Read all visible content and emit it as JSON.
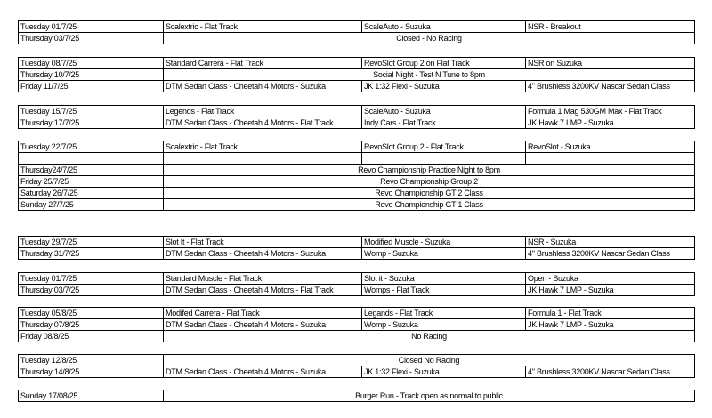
{
  "groups": [
    {
      "rows": [
        {
          "date": "Tuesday 01/7/25",
          "cells": [
            "Scalextric - Flat Track",
            "ScaleAuto - Suzuka",
            "NSR - Breakout"
          ]
        },
        {
          "date": "Thursday 03/7/25",
          "note": "Closed - No Racing"
        }
      ]
    },
    {
      "rows": [
        {
          "date": "Tuesday 08/7/25",
          "cells": [
            "Standard Carrera - Flat Track",
            "RevoSlot Group 2 on Flat Track",
            "NSR on Suzuka"
          ]
        },
        {
          "date": "Thursday 10/7/25",
          "note": "Social Night - Test N Tune to 8pm"
        },
        {
          "date": "Friday 11/7/25",
          "cells": [
            "DTM Sedan Class - Cheetah 4 Motors - Suzuka",
            "JK 1:32 Flexi - Suzuka",
            "4\" Brushless 3200KV Nascar Sedan Class"
          ]
        }
      ]
    },
    {
      "rows": [
        {
          "date": "Tuesday 15/7/25",
          "cells": [
            "Legends - Flat Track",
            "ScaleAuto - Suzuka",
            "Formula 1 Mag 530GM Max - Flat Track"
          ]
        },
        {
          "date": "Thursday 17/7/25",
          "cells": [
            "DTM Sedan Class - Cheetah 4 Motors - Flat Track",
            "Indy Cars - Flat Track",
            "JK Hawk 7 LMP - Suzuka"
          ]
        }
      ]
    },
    {
      "rows": [
        {
          "date": "Tuesday 22/7/25",
          "cells": [
            "Scalextric - Flat Track",
            "RevoSlot Group 2 - Flat Track",
            "RevoSlot - Suzuka"
          ]
        },
        {
          "date": "Thursday24/7/25",
          "note": "Revo Championship Practice Night to 8pm"
        },
        {
          "date": "Friday 25/7/25",
          "note": "Revo Championship Group 2"
        },
        {
          "date": "Saturday 26/7/25",
          "note": "Revo Championship GT 2 Class"
        },
        {
          "date": "Sunday 27/7/25",
          "note": "Revo Championship GT 1 Class"
        }
      ]
    },
    {
      "rows": [
        {
          "date": "Tuesday 29/7/25",
          "cells": [
            "Slot It - Flat Track",
            "Modified Muscle - Suzuka",
            "NSR - Suzuka"
          ]
        },
        {
          "date": "Thursday 31/7/25",
          "cells": [
            "DTM Sedan Class - Cheetah 4 Motors - Suzuka",
            "Womp - Suzuka",
            "4\" Brushless 3200KV Nascar Sedan Class"
          ]
        }
      ]
    },
    {
      "rows": [
        {
          "date": "Tuesday 01/7/25",
          "cells": [
            "Standard Muscle - Flat Track",
            "Slot it - Suzuka",
            "Open - Suzuka"
          ]
        },
        {
          "date": "Thursday 03/7/25",
          "cells": [
            "DTM Sedan Class - Cheetah 4 Motors - Flat Track",
            "Womps - Flat Track",
            "JK Hawk 7 LMP - Suzuka"
          ]
        }
      ]
    },
    {
      "rows": [
        {
          "date": "Tuesday 05/8/25",
          "cells": [
            "Modifed Carrera - Flat Track",
            "Legands - Flat Track",
            "Formula 1 - Flat Track"
          ]
        },
        {
          "date": "Thursday 07/8/25",
          "cells": [
            "DTM Sedan Class - Cheetah 4 Motors - Suzuka",
            "Womp - Suzuka",
            "JK Hawk 7 LMP - Suzuka"
          ]
        },
        {
          "date": "Friday 08/8/25",
          "note": "No Racing"
        }
      ]
    },
    {
      "rows": [
        {
          "date": "Tuesday 12/8/25",
          "note": "Closed No Racing"
        },
        {
          "date": "Thursday 14/8/25",
          "cells": [
            "DTM Sedan Class - Cheetah 4 Motors - Suzuka",
            "JK 1:32 Flexi - Suzuka",
            "4\" Brushless 3200KV Nascar Sedan Class"
          ]
        }
      ]
    },
    {
      "rows": [
        {
          "date": "Sunday 17/08/25",
          "note": "Burger Run - Track open as normal to public"
        }
      ]
    }
  ]
}
